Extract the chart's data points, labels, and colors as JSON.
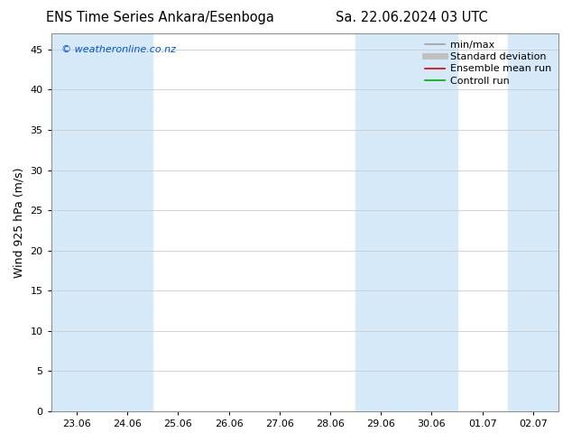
{
  "title_left": "ENS Time Series Ankara/Esenboga",
  "title_right": "Sa. 22.06.2024 03 UTC",
  "ylabel": "Wind 925 hPa (m/s)",
  "watermark": "© weatheronline.co.nz",
  "ylim": [
    0,
    47
  ],
  "yticks": [
    0,
    5,
    10,
    15,
    20,
    25,
    30,
    35,
    40,
    45
  ],
  "x_labels": [
    "23.06",
    "24.06",
    "25.06",
    "26.06",
    "27.06",
    "28.06",
    "29.06",
    "30.06",
    "01.07",
    "02.07"
  ],
  "x_positions": [
    0,
    1,
    2,
    3,
    4,
    5,
    6,
    7,
    8,
    9
  ],
  "xlim": [
    -0.5,
    9.5
  ],
  "blue_bands": [
    [
      -0.5,
      0.5
    ],
    [
      0.5,
      1.5
    ],
    [
      5.5,
      6.5
    ],
    [
      6.5,
      7.5
    ],
    [
      8.5,
      9.5
    ]
  ],
  "band_color": "#d6e9f8",
  "background_color": "#ffffff",
  "grid_color": "#cccccc",
  "legend_items": [
    {
      "label": "min/max",
      "color": "#a0a0a0",
      "lw": 1.2,
      "style": "-"
    },
    {
      "label": "Standard deviation",
      "color": "#c0c0c0",
      "lw": 5,
      "style": "-"
    },
    {
      "label": "Ensemble mean run",
      "color": "#dd0000",
      "lw": 1.2,
      "style": "-"
    },
    {
      "label": "Controll run",
      "color": "#00aa00",
      "lw": 1.2,
      "style": "-"
    }
  ],
  "tick_fontsize": 8,
  "label_fontsize": 9,
  "title_fontsize": 10.5,
  "watermark_fontsize": 8,
  "watermark_color": "#0055cc",
  "legend_fontsize": 8
}
